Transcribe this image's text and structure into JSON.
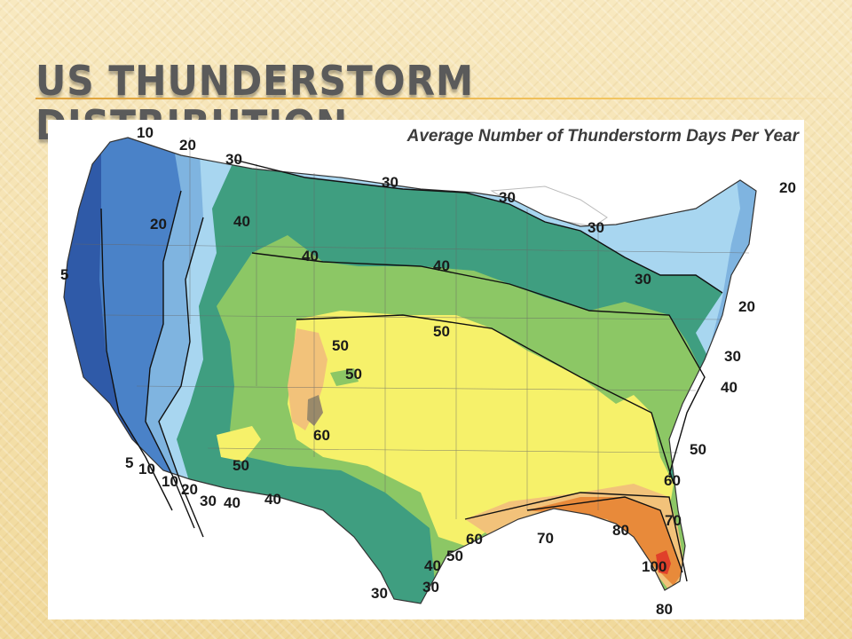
{
  "slide": {
    "title": "US Thunderstorm Distribution"
  },
  "map": {
    "caption": "Average Number of Thunderstorm Days Per Year",
    "legend_colors": {
      "5": "#2f5aa8",
      "10": "#4a82c8",
      "20": "#7fb4e0",
      "30": "#a8d6f0",
      "40": "#3f9e80",
      "50": "#8cc765",
      "60": "#f6f16a",
      "70": "#f2c27a",
      "80": "#e88a3a",
      "100": "#e0402a"
    },
    "contour_labels": [
      {
        "id": "l10a",
        "text": "10"
      },
      {
        "id": "l20a",
        "text": "20"
      },
      {
        "id": "l30a",
        "text": "30"
      },
      {
        "id": "l30b",
        "text": "30"
      },
      {
        "id": "l30c",
        "text": "30"
      },
      {
        "id": "l30d",
        "text": "30"
      },
      {
        "id": "l20b",
        "text": "20"
      },
      {
        "id": "l40a",
        "text": "40"
      },
      {
        "id": "l20c",
        "text": "20"
      },
      {
        "id": "l40b",
        "text": "40"
      },
      {
        "id": "l40c",
        "text": "40"
      },
      {
        "id": "l5a",
        "text": "5"
      },
      {
        "id": "l30e",
        "text": "30"
      },
      {
        "id": "l20d",
        "text": "20"
      },
      {
        "id": "l50a",
        "text": "50"
      },
      {
        "id": "l50b",
        "text": "50"
      },
      {
        "id": "l50c",
        "text": "50"
      },
      {
        "id": "l30f",
        "text": "30"
      },
      {
        "id": "l40d",
        "text": "40"
      },
      {
        "id": "l60a",
        "text": "60"
      },
      {
        "id": "l50d",
        "text": "50"
      },
      {
        "id": "l50e",
        "text": "50"
      },
      {
        "id": "l5b",
        "text": "5"
      },
      {
        "id": "l10b",
        "text": "10"
      },
      {
        "id": "l10c",
        "text": "10"
      },
      {
        "id": "l20e",
        "text": "20"
      },
      {
        "id": "l30g",
        "text": "30"
      },
      {
        "id": "l40e",
        "text": "40"
      },
      {
        "id": "l40f",
        "text": "40"
      },
      {
        "id": "l60b",
        "text": "60"
      },
      {
        "id": "l70a",
        "text": "70"
      },
      {
        "id": "l60c",
        "text": "60"
      },
      {
        "id": "l70b",
        "text": "70"
      },
      {
        "id": "l80a",
        "text": "80"
      },
      {
        "id": "l50f",
        "text": "50"
      },
      {
        "id": "l40g",
        "text": "40"
      },
      {
        "id": "l100",
        "text": "100"
      },
      {
        "id": "l30h",
        "text": "30"
      },
      {
        "id": "l30i",
        "text": "30"
      },
      {
        "id": "l80b",
        "text": "80"
      }
    ]
  }
}
